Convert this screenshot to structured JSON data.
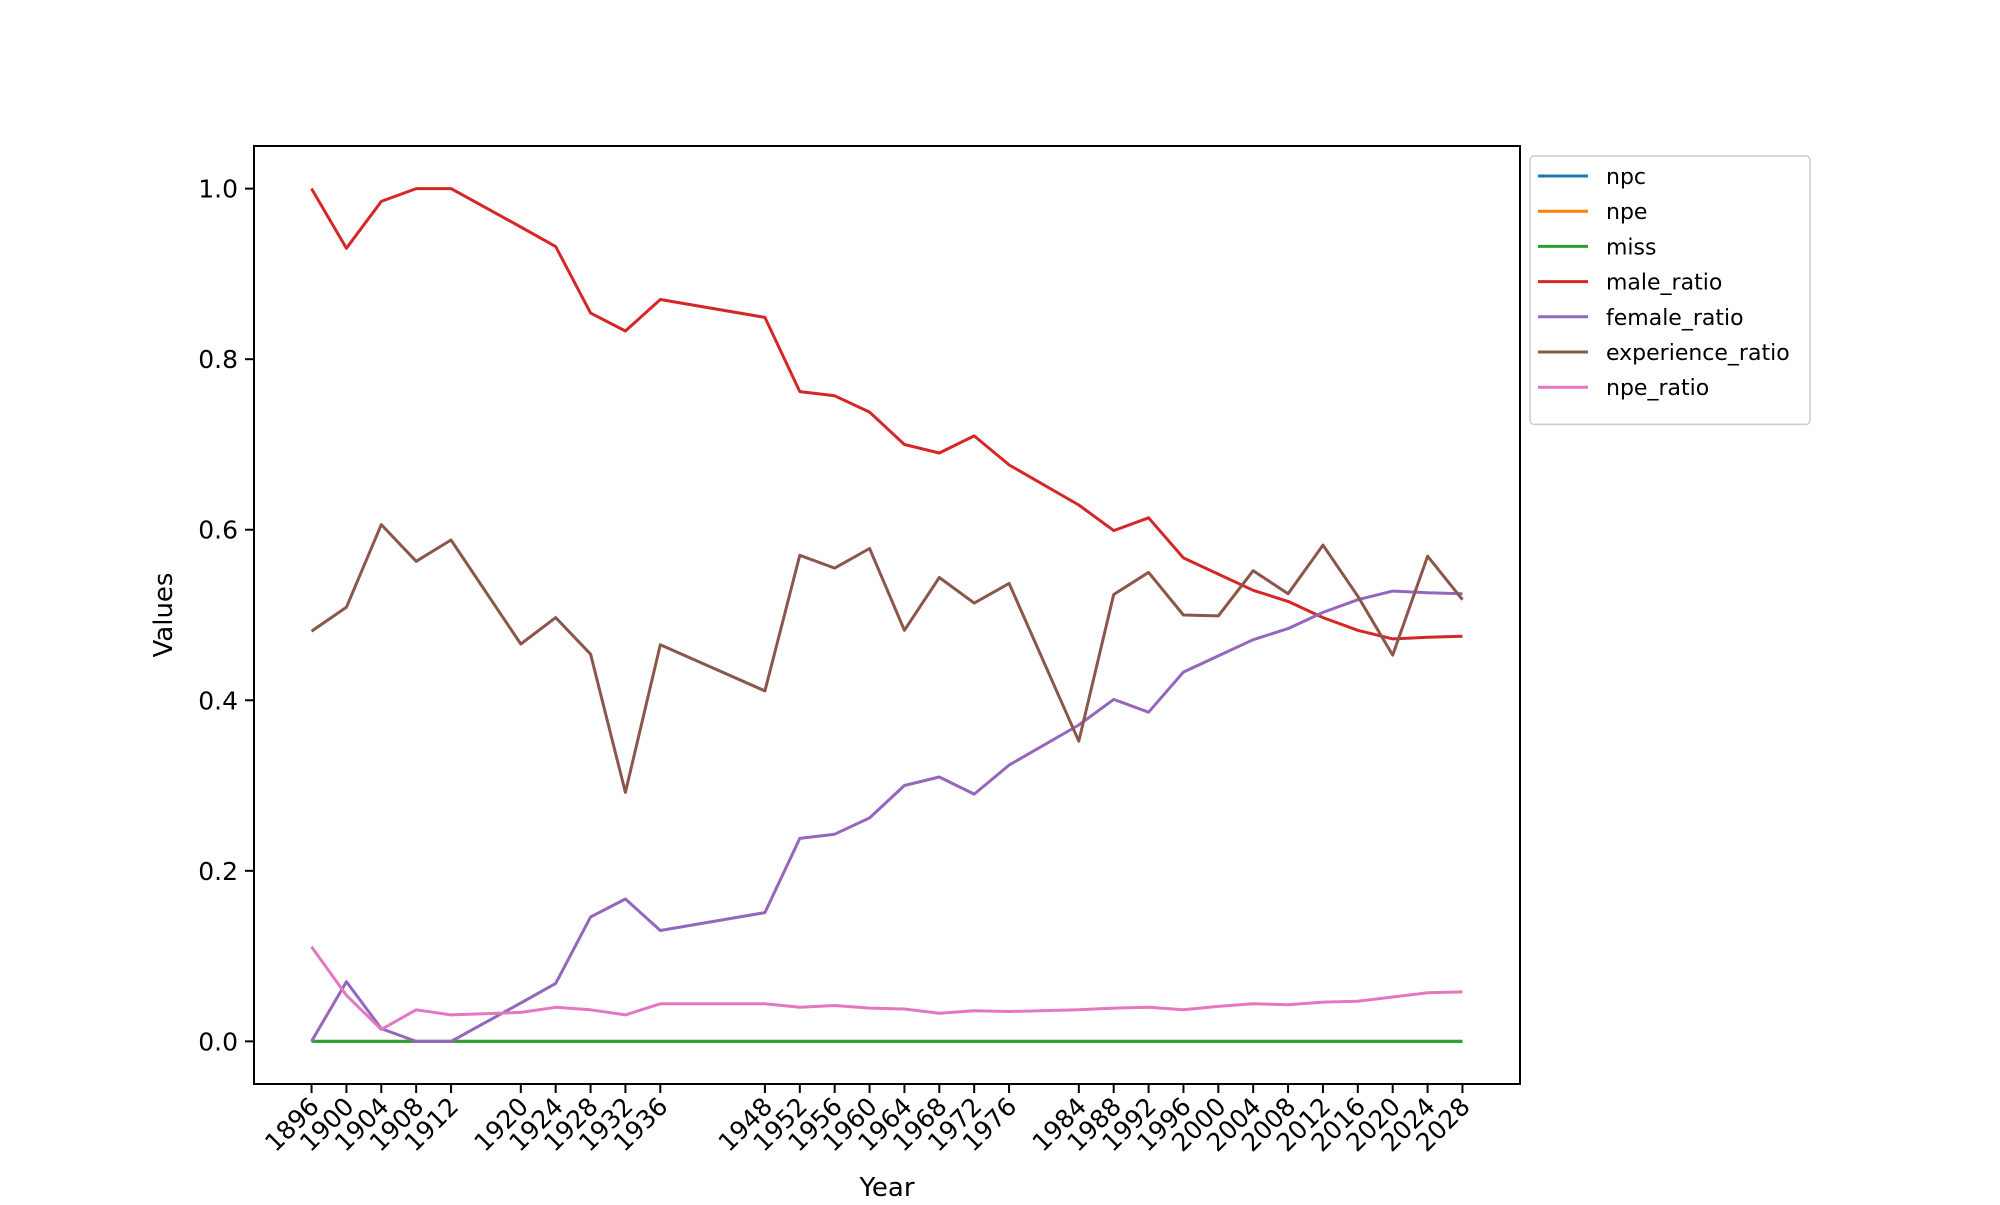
{
  "chart_data": {
    "type": "line",
    "title": "",
    "xlabel": "Year",
    "ylabel": "Values",
    "x": [
      1896,
      1900,
      1904,
      1908,
      1912,
      1920,
      1924,
      1928,
      1932,
      1936,
      1948,
      1952,
      1956,
      1960,
      1964,
      1968,
      1972,
      1976,
      1984,
      1988,
      1992,
      1996,
      2000,
      2004,
      2008,
      2012,
      2016,
      2020,
      2024,
      2028
    ],
    "xlim": [
      1889.4,
      2034.6
    ],
    "ylim": [
      -0.05,
      1.05
    ],
    "yticks": [
      0.0,
      0.2,
      0.4,
      0.6,
      0.8,
      1.0
    ],
    "ytick_labels": [
      "0.0",
      "0.2",
      "0.4",
      "0.6",
      "0.8",
      "1.0"
    ],
    "grid": false,
    "legend_position": "outside upper right",
    "series": [
      {
        "name": "npc",
        "color": "#1f77b4",
        "values": [
          0,
          0,
          0,
          0,
          0,
          0,
          0,
          0,
          0,
          0,
          0,
          0,
          0,
          0,
          0,
          0,
          0,
          0,
          0,
          0,
          0,
          0,
          0,
          0,
          0,
          0,
          0,
          0,
          0,
          0
        ]
      },
      {
        "name": "npe",
        "color": "#ff7f0e",
        "values": [
          0,
          0,
          0,
          0,
          0,
          0,
          0,
          0,
          0,
          0,
          0,
          0,
          0,
          0,
          0,
          0,
          0,
          0,
          0,
          0,
          0,
          0,
          0,
          0,
          0,
          0,
          0,
          0,
          0,
          0
        ]
      },
      {
        "name": "miss",
        "color": "#2ca02c",
        "values": [
          0,
          0,
          0,
          0,
          0,
          0,
          0,
          0,
          0,
          0,
          0,
          0,
          0,
          0,
          0,
          0,
          0,
          0,
          0,
          0,
          0,
          0,
          0,
          0,
          0,
          0,
          0,
          0,
          0,
          0
        ]
      },
      {
        "name": "male_ratio",
        "color": "#d62728",
        "values": [
          1.0,
          0.93,
          0.985,
          1.0,
          1.0,
          0.955,
          0.932,
          0.854,
          0.833,
          0.87,
          0.849,
          0.762,
          0.757,
          0.738,
          0.7,
          0.69,
          0.71,
          0.676,
          0.629,
          0.599,
          0.614,
          0.567,
          0.548,
          0.529,
          0.516,
          0.497,
          0.482,
          0.472,
          0.474,
          0.475
        ]
      },
      {
        "name": "female_ratio",
        "color": "#9467bd",
        "values": [
          0.0,
          0.07,
          0.015,
          0.0,
          0.0,
          0.045,
          0.068,
          0.146,
          0.167,
          0.13,
          0.151,
          0.238,
          0.243,
          0.262,
          0.3,
          0.31,
          0.29,
          0.324,
          0.371,
          0.401,
          0.386,
          0.433,
          0.452,
          0.471,
          0.484,
          0.503,
          0.518,
          0.528,
          0.526,
          0.525
        ]
      },
      {
        "name": "experience_ratio",
        "color": "#8c564b",
        "values": [
          0.481,
          0.509,
          0.606,
          0.563,
          0.588,
          0.466,
          0.497,
          0.454,
          0.292,
          0.465,
          0.411,
          0.57,
          0.555,
          0.578,
          0.482,
          0.544,
          0.514,
          0.537,
          0.352,
          0.524,
          0.55,
          0.5,
          0.499,
          0.552,
          0.525,
          0.582,
          0.522,
          0.453,
          0.569,
          0.518
        ]
      },
      {
        "name": "npe_ratio",
        "color": "#e377c2",
        "values": [
          0.111,
          0.054,
          0.014,
          0.037,
          0.031,
          0.034,
          0.04,
          0.037,
          0.031,
          0.044,
          0.044,
          0.04,
          0.042,
          0.039,
          0.038,
          0.033,
          0.036,
          0.035,
          0.037,
          0.039,
          0.04,
          0.037,
          0.041,
          0.044,
          0.043,
          0.046,
          0.047,
          0.052,
          0.057,
          0.058
        ]
      }
    ]
  }
}
